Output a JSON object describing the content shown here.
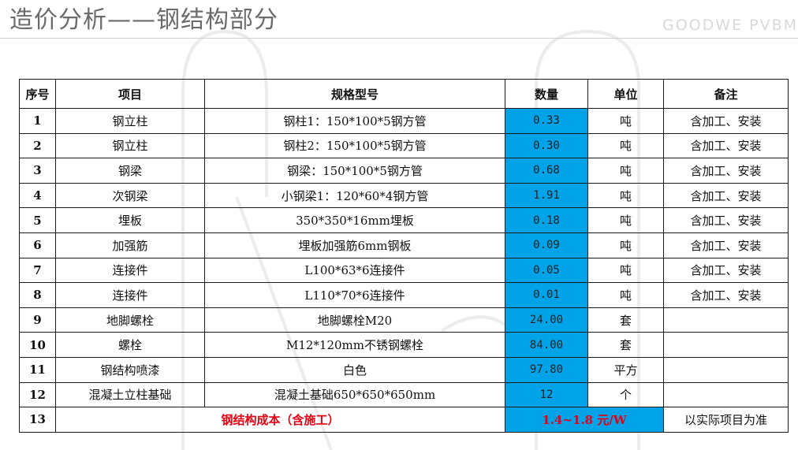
{
  "header": {
    "title": "造价分析——钢结构部分",
    "brand": "GOODWE PVBM"
  },
  "table": {
    "headers": {
      "index": "序号",
      "item": "项目",
      "spec": "规格型号",
      "quantity": "数量",
      "unit": "单位",
      "remark": "备注"
    },
    "rows": [
      {
        "index": "1",
        "item": "钢立柱",
        "spec": "钢柱1：150*100*5钢方管",
        "quantity": "0.33",
        "unit": "吨",
        "remark": "含加工、安装"
      },
      {
        "index": "2",
        "item": "钢立柱",
        "spec": "钢柱2：150*100*5钢方管",
        "quantity": "0.30",
        "unit": "吨",
        "remark": "含加工、安装"
      },
      {
        "index": "3",
        "item": "钢梁",
        "spec": "钢梁：150*100*5钢方管",
        "quantity": "0.68",
        "unit": "吨",
        "remark": "含加工、安装"
      },
      {
        "index": "4",
        "item": "次钢梁",
        "spec": "小钢梁1：120*60*4钢方管",
        "quantity": "1.91",
        "unit": "吨",
        "remark": "含加工、安装"
      },
      {
        "index": "5",
        "item": "埋板",
        "spec": "350*350*16mm埋板",
        "quantity": "0.18",
        "unit": "吨",
        "remark": "含加工、安装"
      },
      {
        "index": "6",
        "item": "加强筋",
        "spec": "埋板加强筋6mm钢板",
        "quantity": "0.09",
        "unit": "吨",
        "remark": "含加工、安装"
      },
      {
        "index": "7",
        "item": "连接件",
        "spec": "L100*63*6连接件",
        "quantity": "0.05",
        "unit": "吨",
        "remark": "含加工、安装"
      },
      {
        "index": "8",
        "item": "连接件",
        "spec": "L110*70*6连接件",
        "quantity": "0.01",
        "unit": "吨",
        "remark": "含加工、安装"
      },
      {
        "index": "9",
        "item": "地脚螺栓",
        "spec": "地脚螺栓M20",
        "quantity": "24.00",
        "unit": "套",
        "remark": ""
      },
      {
        "index": "10",
        "item": "螺栓",
        "spec": "M12*120mm不锈钢螺栓",
        "quantity": "84.00",
        "unit": "套",
        "remark": ""
      },
      {
        "index": "11",
        "item": "钢结构喷漆",
        "spec": "白色",
        "quantity": "97.80",
        "unit": "平方",
        "remark": ""
      },
      {
        "index": "12",
        "item": "混凝土立柱基础",
        "spec": "混凝土基础650*650*650mm",
        "quantity": "12",
        "unit": "个",
        "remark": ""
      }
    ],
    "summary": {
      "index": "13",
      "label": "钢结构成本（含施工）",
      "value": "1.4~1.8 元/W",
      "remark": "以实际项目为准"
    }
  },
  "colors": {
    "highlight": "#00a2e8",
    "emphasis": "#e60012",
    "title": "#6b6b6b",
    "brand": "#d9d9d9"
  }
}
